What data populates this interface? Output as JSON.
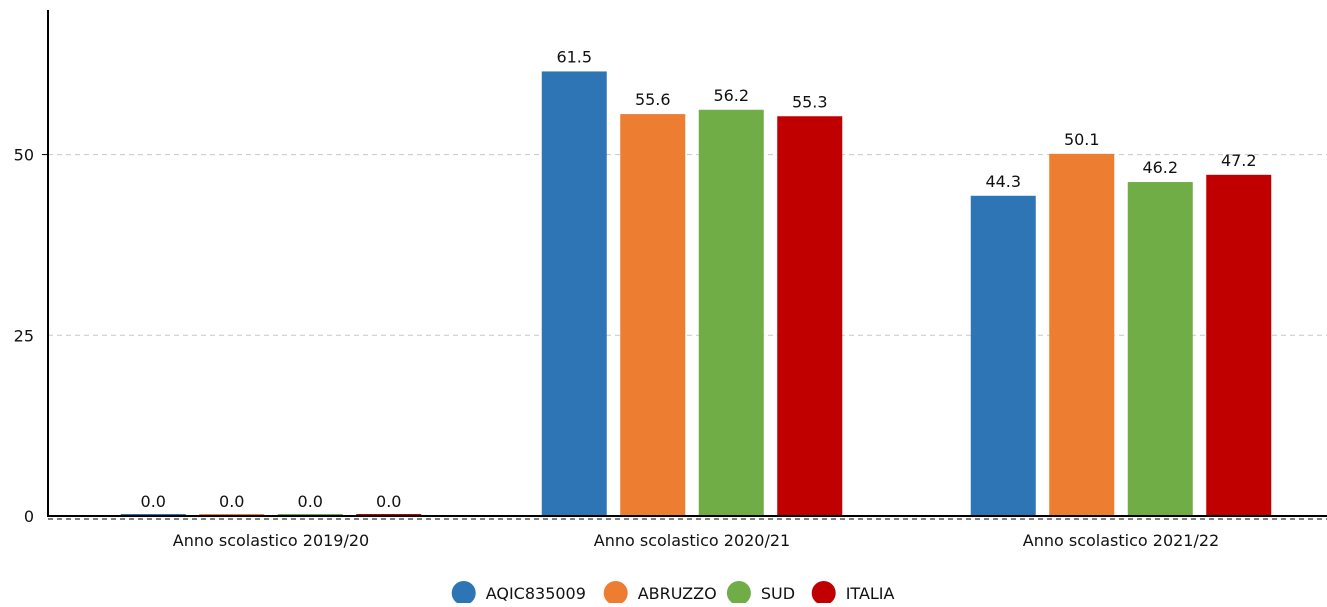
{
  "chart_data": {
    "type": "bar",
    "categories": [
      "Anno scolastico 2019/20",
      "Anno scolastico 2020/21",
      "Anno scolastico 2021/22"
    ],
    "series": [
      {
        "name": "AQIC835009",
        "color": "#2e75b6",
        "values": [
          0.0,
          61.5,
          44.3
        ]
      },
      {
        "name": "ABRUZZO",
        "color": "#ed7d31",
        "values": [
          0.0,
          55.6,
          50.1
        ]
      },
      {
        "name": "SUD",
        "color": "#70ad47",
        "values": [
          0.0,
          56.2,
          46.2
        ]
      },
      {
        "name": "ITALIA",
        "color": "#c00000",
        "values": [
          0.0,
          55.3,
          47.2
        ]
      }
    ],
    "yticks": [
      0,
      25,
      50
    ],
    "ylim": [
      0,
      70
    ],
    "grid": true,
    "legend": "bottom-center",
    "value_format_decimals": 1
  }
}
